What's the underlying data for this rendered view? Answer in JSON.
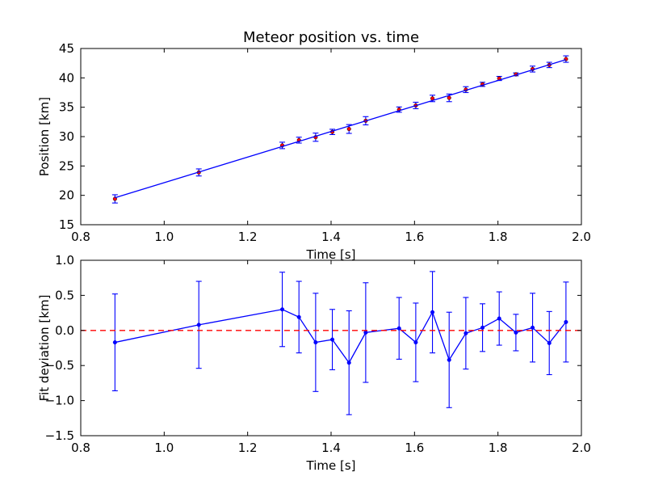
{
  "chart_data": [
    {
      "type": "scatter",
      "title": "Meteor position vs. time",
      "xlabel": "Time [s]",
      "ylabel": "Position [km]",
      "xlim": [
        0.8,
        2.0
      ],
      "ylim": [
        15,
        45
      ],
      "xticks": [
        0.8,
        1.0,
        1.2,
        1.4,
        1.6,
        1.8,
        2.0
      ],
      "yticks": [
        15,
        20,
        25,
        30,
        35,
        40,
        45
      ],
      "xtick_labels": [
        "0.8",
        "1.0",
        "1.2",
        "1.4",
        "1.6",
        "1.8",
        "2.0"
      ],
      "ytick_labels": [
        "15",
        "20",
        "25",
        "30",
        "35",
        "40",
        "45"
      ],
      "grid": false,
      "series": [
        {
          "kind": "errorbar-points",
          "color": "#ff0000",
          "errcolor": "#0000ff",
          "x": [
            0.882,
            1.083,
            1.283,
            1.323,
            1.363,
            1.403,
            1.443,
            1.483,
            1.563,
            1.603,
            1.643,
            1.683,
            1.723,
            1.763,
            1.803,
            1.843,
            1.883,
            1.923,
            1.963
          ],
          "y": [
            19.4,
            23.9,
            28.5,
            29.4,
            29.9,
            30.8,
            31.3,
            32.7,
            34.6,
            35.3,
            36.5,
            36.6,
            38.0,
            38.9,
            39.9,
            40.6,
            41.5,
            42.2,
            43.2
          ],
          "yerr": [
            0.7,
            0.6,
            0.55,
            0.5,
            0.7,
            0.45,
            0.75,
            0.7,
            0.45,
            0.55,
            0.55,
            0.65,
            0.5,
            0.35,
            0.35,
            0.25,
            0.5,
            0.45,
            0.55
          ]
        },
        {
          "kind": "fit-line",
          "color": "#0000ff",
          "x": [
            0.882,
            1.963
          ],
          "y": [
            19.6,
            43.1
          ]
        }
      ]
    },
    {
      "type": "line",
      "title": "",
      "xlabel": "Time [s]",
      "ylabel": "Fit deviation [km]",
      "xlim": [
        0.8,
        2.0
      ],
      "ylim": [
        -1.5,
        1.0
      ],
      "xticks": [
        0.8,
        1.0,
        1.2,
        1.4,
        1.6,
        1.8,
        2.0
      ],
      "yticks": [
        -1.5,
        -1.0,
        -0.5,
        0.0,
        0.5,
        1.0
      ],
      "xtick_labels": [
        "0.8",
        "1.0",
        "1.2",
        "1.4",
        "1.6",
        "1.8",
        "2.0"
      ],
      "ytick_labels": [
        "−1.5",
        "−1.0",
        "−0.5",
        "0.0",
        "0.5",
        "1.0"
      ],
      "grid": false,
      "series": [
        {
          "kind": "errorbar-line",
          "color": "#0000ff",
          "x": [
            0.882,
            1.083,
            1.283,
            1.323,
            1.363,
            1.403,
            1.443,
            1.483,
            1.563,
            1.603,
            1.643,
            1.683,
            1.723,
            1.763,
            1.803,
            1.843,
            1.883,
            1.923,
            1.963
          ],
          "y": [
            -0.17,
            0.08,
            0.3,
            0.19,
            -0.17,
            -0.13,
            -0.46,
            -0.03,
            0.03,
            -0.17,
            0.26,
            -0.42,
            -0.04,
            0.04,
            0.17,
            -0.03,
            0.04,
            -0.18,
            0.12
          ],
          "yerr": [
            0.69,
            0.62,
            0.53,
            0.51,
            0.7,
            0.43,
            0.74,
            0.71,
            0.44,
            0.56,
            0.58,
            0.68,
            0.51,
            0.34,
            0.38,
            0.26,
            0.49,
            0.45,
            0.57
          ]
        },
        {
          "kind": "reference-line",
          "color": "#ff0000",
          "y": 0.0,
          "dashed": true
        }
      ]
    }
  ]
}
